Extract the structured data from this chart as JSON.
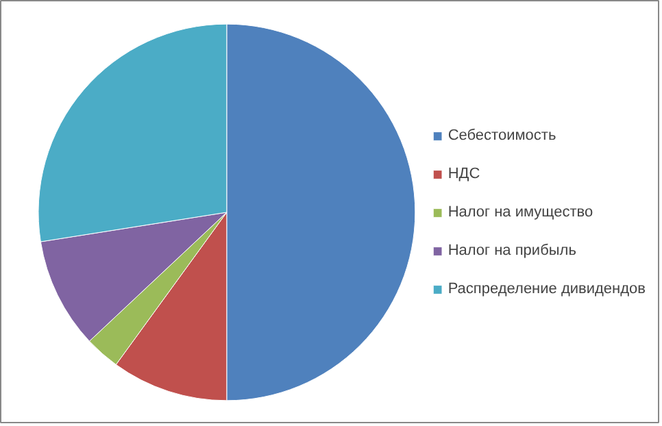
{
  "chart_data": {
    "type": "pie",
    "categories": [
      "Себестоимость",
      "НДС",
      "Налог на имущество",
      "Налог на прибыль",
      "Распределение дивидендов"
    ],
    "values": [
      50,
      10,
      3,
      9.5,
      27.5
    ],
    "colors": [
      "#4f81bd",
      "#c0504d",
      "#9bbb59",
      "#8064a2",
      "#4bacc6"
    ],
    "legend": "right"
  }
}
